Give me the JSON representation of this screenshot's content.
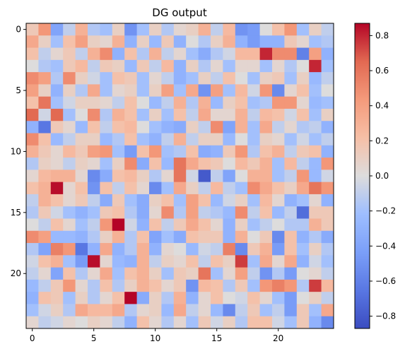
{
  "chart_data": {
    "type": "heatmap",
    "title": "DG output",
    "xlabel": "",
    "ylabel": "",
    "rows": 25,
    "cols": 25,
    "x_ticks": [
      0,
      5,
      10,
      15,
      20
    ],
    "x_tick_labels": [
      "0",
      "5",
      "10",
      "15",
      "20"
    ],
    "y_ticks": [
      0,
      5,
      10,
      15,
      20
    ],
    "y_tick_labels": [
      "0",
      "5",
      "10",
      "15",
      "20"
    ],
    "colormap": "coolwarm",
    "vmin": -0.87,
    "vmax": 0.87,
    "colorbar_ticks": [
      0.8,
      0.6,
      0.4,
      0.2,
      0.0,
      -0.2,
      -0.4,
      -0.6,
      -0.8
    ],
    "colorbar_tick_labels": [
      "0.8",
      "0.6",
      "0.4",
      "0.2",
      "0.0",
      "−0.2",
      "−0.4",
      "−0.6",
      "−0.8"
    ],
    "values": [
      [
        0.15,
        0.45,
        -0.4,
        -0.1,
        0.3,
        -0.15,
        -0.2,
        0.1,
        -0.5,
        -0.2,
        0.1,
        -0.15,
        0.05,
        0.1,
        0.3,
        -0.1,
        0.25,
        -0.5,
        -0.45,
        0.0,
        0.2,
        0.45,
        -0.2,
        0.1,
        -0.1
      ],
      [
        0.35,
        0.1,
        -0.2,
        0.2,
        0.4,
        0.1,
        0.05,
        0.3,
        -0.3,
        0.1,
        -0.25,
        0.15,
        -0.3,
        0.0,
        -0.15,
        0.1,
        0.3,
        -0.3,
        -0.45,
        -0.3,
        -0.3,
        0.15,
        0.05,
        -0.2,
        -0.15
      ],
      [
        0.2,
        -0.1,
        0.05,
        0.15,
        -0.1,
        0.3,
        0.5,
        -0.3,
        0.2,
        -0.15,
        0.3,
        -0.1,
        0.05,
        -0.2,
        -0.35,
        -0.15,
        -0.05,
        0.25,
        0.25,
        0.8,
        0.5,
        0.5,
        -0.6,
        0.4,
        -0.3
      ],
      [
        0.0,
        -0.15,
        -0.2,
        0.15,
        0.25,
        -0.1,
        0.15,
        0.1,
        -0.25,
        0.15,
        -0.1,
        0.25,
        -0.3,
        0.1,
        -0.15,
        0.05,
        -0.2,
        0.05,
        0.05,
        -0.2,
        0.05,
        -0.15,
        0.0,
        0.8,
        -0.2
      ],
      [
        0.5,
        0.4,
        -0.15,
        0.5,
        0.1,
        -0.05,
        -0.2,
        0.2,
        0.15,
        -0.2,
        0.05,
        -0.1,
        -0.3,
        -0.2,
        0.1,
        -0.1,
        0.2,
        0.0,
        -0.2,
        0.1,
        0.15,
        -0.2,
        0.1,
        -0.25,
        -0.1
      ],
      [
        0.4,
        0.1,
        -0.3,
        0.1,
        -0.15,
        0.35,
        -0.2,
        0.05,
        0.1,
        -0.2,
        0.1,
        0.4,
        -0.2,
        0.35,
        -0.5,
        0.4,
        -0.2,
        0.25,
        -0.05,
        0.45,
        -0.55,
        0.05,
        0.2,
        -0.2,
        0.0
      ],
      [
        0.2,
        0.6,
        -0.2,
        -0.05,
        0.1,
        0.1,
        0.05,
        -0.1,
        0.2,
        0.0,
        -0.25,
        -0.1,
        0.3,
        -0.15,
        0.3,
        -0.25,
        0.1,
        0.2,
        -0.2,
        -0.15,
        0.45,
        0.45,
        0.05,
        -0.25,
        -0.2
      ],
      [
        0.65,
        -0.05,
        0.65,
        -0.2,
        0.0,
        0.5,
        -0.15,
        0.3,
        0.2,
        -0.2,
        0.1,
        -0.2,
        0.2,
        -0.1,
        0.35,
        0.05,
        0.05,
        0.3,
        -0.1,
        0.25,
        0.2,
        -0.05,
        0.2,
        -0.2,
        0.1
      ],
      [
        -0.3,
        -0.65,
        0.15,
        0.05,
        -0.25,
        0.2,
        -0.1,
        0.2,
        0.25,
        0.0,
        -0.2,
        -0.3,
        -0.35,
        0.1,
        -0.1,
        0.5,
        -0.4,
        0.3,
        -0.2,
        0.35,
        -0.1,
        0.05,
        -0.15,
        -0.1,
        -0.3
      ],
      [
        0.5,
        0.2,
        -0.25,
        -0.1,
        0.1,
        0.1,
        -0.25,
        -0.15,
        0.2,
        -0.2,
        -0.3,
        -0.1,
        0.3,
        -0.1,
        0.1,
        0.1,
        -0.25,
        0.0,
        -0.2,
        0.1,
        0.05,
        -0.2,
        -0.05,
        -0.2,
        -0.1
      ],
      [
        0.3,
        0.15,
        0.05,
        0.25,
        0.15,
        0.4,
        0.45,
        -0.2,
        -0.45,
        0.2,
        0.45,
        -0.2,
        -0.15,
        0.2,
        -0.35,
        -0.3,
        0.15,
        0.45,
        -0.15,
        0.2,
        0.3,
        -0.1,
        0.15,
        0.2,
        -0.3
      ],
      [
        -0.15,
        0.1,
        0.05,
        -0.1,
        0.1,
        0.05,
        -0.2,
        0.1,
        0.5,
        -0.35,
        0.2,
        -0.25,
        0.6,
        0.35,
        0.2,
        0.15,
        0.0,
        0.25,
        0.15,
        0.3,
        -0.2,
        0.25,
        -0.1,
        -0.25,
        0.45
      ],
      [
        0.05,
        0.25,
        0.3,
        0.3,
        0.05,
        -0.55,
        -0.35,
        0.2,
        0.25,
        0.1,
        -0.15,
        0.05,
        0.6,
        -0.05,
        -0.8,
        -0.1,
        -0.4,
        0.0,
        0.3,
        0.3,
        -0.2,
        -0.1,
        0.45,
        -0.25,
        -0.05
      ],
      [
        0.2,
        0.3,
        0.85,
        0.05,
        0.2,
        -0.5,
        0.2,
        -0.1,
        0.2,
        0.05,
        -0.55,
        -0.2,
        0.35,
        0.1,
        -0.1,
        0.25,
        -0.1,
        -0.2,
        0.5,
        0.35,
        0.2,
        0.1,
        0.35,
        0.6,
        0.45
      ],
      [
        -0.1,
        0.3,
        0.2,
        0.05,
        0.15,
        -0.1,
        -0.35,
        0.15,
        -0.2,
        -0.35,
        0.1,
        0.2,
        -0.2,
        0.4,
        0.2,
        -0.25,
        -0.05,
        0.1,
        -0.2,
        0.25,
        0.05,
        -0.3,
        -0.2,
        0.05,
        -0.3
      ],
      [
        -0.15,
        0.15,
        -0.05,
        -0.2,
        -0.3,
        -0.2,
        0.15,
        0.2,
        -0.15,
        -0.35,
        0.05,
        0.5,
        -0.15,
        0.4,
        -0.1,
        -0.15,
        -0.25,
        0.5,
        -0.1,
        0.2,
        -0.25,
        -0.1,
        -0.7,
        0.15,
        0.15
      ],
      [
        0.0,
        -0.1,
        0.2,
        0.05,
        -0.2,
        -0.1,
        0.45,
        0.87,
        -0.05,
        -0.3,
        0.2,
        -0.1,
        0.15,
        0.35,
        0.2,
        0.05,
        -0.3,
        0.1,
        -0.2,
        -0.1,
        0.0,
        -0.15,
        -0.15,
        0.3,
        0.15
      ],
      [
        0.5,
        0.4,
        -0.25,
        -0.25,
        -0.3,
        -0.15,
        0.1,
        0.3,
        -0.15,
        0.2,
        -0.4,
        -0.2,
        -0.35,
        0.2,
        0.15,
        0.15,
        -0.3,
        0.3,
        0.0,
        0.15,
        -0.55,
        0.2,
        -0.3,
        -0.15,
        -0.35
      ],
      [
        -0.15,
        -0.4,
        0.55,
        0.45,
        -0.65,
        -0.3,
        0.35,
        -0.3,
        -0.15,
        0.3,
        -0.3,
        0.05,
        0.0,
        -0.25,
        -0.05,
        -0.1,
        0.55,
        -0.55,
        0.15,
        0.3,
        -0.45,
        0.2,
        -0.2,
        0.1,
        -0.15
      ],
      [
        -0.05,
        0.2,
        0.3,
        -0.2,
        -0.45,
        0.85,
        0.05,
        -0.25,
        -0.3,
        0.3,
        -0.1,
        0.1,
        0.05,
        0.2,
        -0.1,
        0.2,
        0.1,
        0.75,
        -0.2,
        0.35,
        0.05,
        0.35,
        -0.3,
        -0.05,
        -0.2
      ],
      [
        -0.1,
        0.05,
        -0.4,
        0.2,
        -0.15,
        0.05,
        0.35,
        -0.2,
        0.2,
        0.3,
        0.1,
        -0.2,
        0.15,
        0.1,
        0.6,
        -0.2,
        0.05,
        0.4,
        -0.1,
        -0.5,
        -0.15,
        -0.45,
        0.0,
        0.05,
        -0.1
      ],
      [
        -0.25,
        -0.1,
        0.15,
        0.45,
        0.05,
        -0.15,
        0.2,
        -0.15,
        0.1,
        0.3,
        0.2,
        0.05,
        0.15,
        -0.5,
        0.25,
        0.2,
        -0.15,
        0.15,
        -0.2,
        0.45,
        0.55,
        0.45,
        -0.15,
        0.75,
        0.25
      ],
      [
        -0.3,
        0.2,
        0.15,
        -0.2,
        0.1,
        -0.15,
        0.05,
        0.2,
        0.87,
        -0.35,
        0.1,
        -0.15,
        0.3,
        -0.3,
        0.05,
        0.2,
        0.0,
        -0.05,
        0.2,
        0.05,
        -0.2,
        -0.45,
        0.0,
        0.1,
        -0.1
      ],
      [
        -0.2,
        -0.05,
        0.1,
        -0.15,
        0.35,
        0.25,
        0.25,
        0.35,
        -0.15,
        0.05,
        0.1,
        -0.25,
        0.35,
        -0.1,
        0.05,
        -0.25,
        -0.55,
        -0.1,
        0.15,
        -0.2,
        -0.1,
        -0.45,
        0.15,
        -0.2,
        0.35
      ],
      [
        0.05,
        -0.1,
        -0.05,
        0.05,
        0.0,
        0.1,
        0.05,
        -0.1,
        -0.3,
        0.2,
        0.05,
        -0.15,
        0.05,
        -0.2,
        0.15,
        -0.05,
        0.1,
        -0.15,
        0.2,
        0.2,
        -0.05,
        -0.2,
        0.15,
        -0.3,
        -0.55
      ]
    ]
  }
}
